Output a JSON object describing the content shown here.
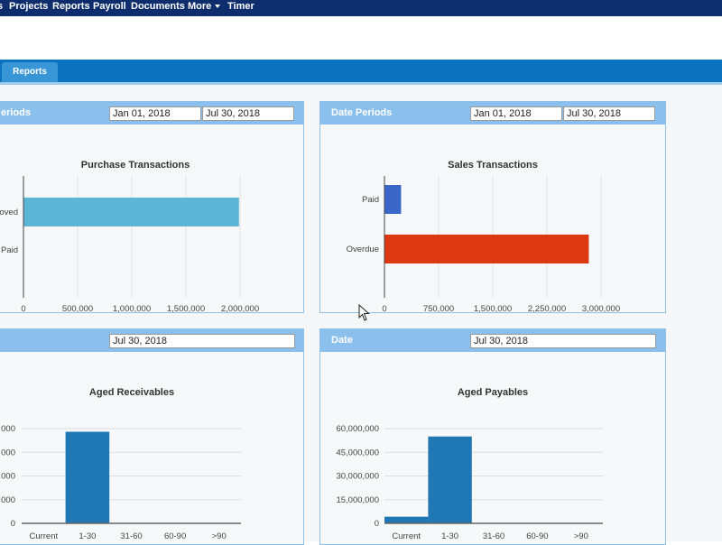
{
  "nav": {
    "items": [
      {
        "label": "s",
        "x": -3
      },
      {
        "label": "Projects",
        "x": 10
      },
      {
        "label": "Reports",
        "x": 58
      },
      {
        "label": "Payroll",
        "x": 103
      },
      {
        "label": "Documents",
        "x": 145
      },
      {
        "label": "More",
        "x": 208
      },
      {
        "label": "Timer",
        "x": 252
      }
    ]
  },
  "tabs": [
    {
      "label": "Reports"
    }
  ],
  "panels": {
    "purchase": {
      "header_label": "eriods",
      "date_from": "Jan 01, 2018",
      "date_to": "Jul 30, 2018"
    },
    "sales": {
      "header_label": "Date Periods",
      "date_from": "Jan 01, 2018",
      "date_to": "Jul 30, 2018"
    },
    "receivables": {
      "header_label": "",
      "date": "Jul 30, 2018"
    },
    "payables": {
      "header_label": "Date",
      "date": "Jul 30, 2018"
    }
  },
  "chart_data": [
    {
      "id": "purchase",
      "type": "bar",
      "orientation": "horizontal",
      "title": "Purchase Transactions",
      "categories": [
        "roved",
        "Paid"
      ],
      "values": [
        1990000,
        0
      ],
      "xlim": [
        0,
        2000000
      ],
      "ticks": [
        0,
        500000,
        1000000,
        1500000,
        2000000
      ],
      "tick_labels": [
        "0",
        "500,000",
        "1,000,000",
        "1,500,000",
        "2,000,000"
      ],
      "colors": [
        "#5bb5d5",
        "#5bb5d5"
      ],
      "grid": true
    },
    {
      "id": "sales",
      "type": "bar",
      "orientation": "horizontal",
      "title": "Sales Transactions",
      "categories": [
        "Paid",
        "Overdue"
      ],
      "values": [
        230000,
        2830000
      ],
      "xlim": [
        0,
        3000000
      ],
      "ticks": [
        0,
        750000,
        1500000,
        2250000,
        3000000
      ],
      "tick_labels": [
        "0",
        "750,000",
        "1,500,000",
        "2,250,000",
        "3,000,000"
      ],
      "colors": [
        "#3a66c8",
        "#dc3912"
      ],
      "grid": true
    },
    {
      "id": "receivables",
      "type": "bar",
      "orientation": "vertical",
      "title": "Aged Receivables",
      "categories": [
        "Current",
        "1-30",
        "31-60",
        "60-90",
        ">90"
      ],
      "values": [
        0,
        58000,
        0,
        0,
        0
      ],
      "ylim": [
        0,
        60000
      ],
      "ticks": [
        0,
        15000,
        30000,
        45000,
        60000
      ],
      "tick_labels": [
        "0",
        "000",
        "000",
        "000",
        "000"
      ],
      "color": "#1f77b4",
      "grid": true
    },
    {
      "id": "payables",
      "type": "bar",
      "orientation": "vertical",
      "title": "Aged Payables",
      "categories": [
        "Current",
        "1-30",
        "31-60",
        "60-90",
        ">90"
      ],
      "values": [
        4200000,
        55000000,
        0,
        0,
        0
      ],
      "ylim": [
        0,
        60000000
      ],
      "ticks": [
        0,
        15000000,
        30000000,
        45000000,
        60000000
      ],
      "tick_labels": [
        "0",
        "15,000,000",
        "30,000,000",
        "45,000,000",
        "60,000,000"
      ],
      "color": "#1f77b4",
      "grid": true
    }
  ]
}
